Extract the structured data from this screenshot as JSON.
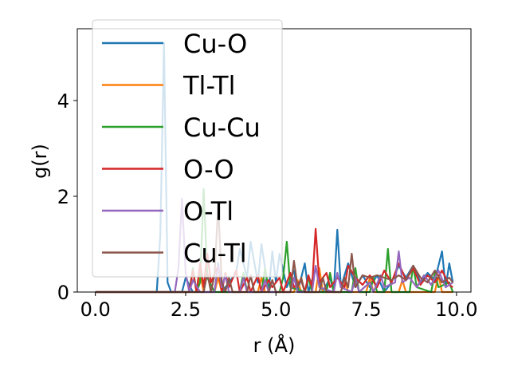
{
  "chart_data": {
    "type": "line",
    "xlabel": "r (Å)",
    "ylabel": "g(r)",
    "xlim": [
      -0.5,
      10.4
    ],
    "ylim": [
      0,
      5.5
    ],
    "xticks": [
      0.0,
      2.5,
      5.0,
      7.5,
      10.0
    ],
    "xtick_labels": [
      "0.0",
      "2.5",
      "5.0",
      "7.5",
      "10.0"
    ],
    "yticks": [
      0,
      2,
      4
    ],
    "ytick_labels": [
      "0",
      "2",
      "4"
    ],
    "legend_position": "upper-left",
    "grid": false,
    "series": [
      {
        "name": "Cu-O",
        "color": "#1f77b4",
        "points": [
          [
            0,
            0
          ],
          [
            1.7,
            0
          ],
          [
            1.8,
            1.2
          ],
          [
            1.9,
            5.2
          ],
          [
            2.0,
            0.2
          ],
          [
            2.1,
            0
          ],
          [
            2.4,
            0
          ],
          [
            2.5,
            0.3
          ],
          [
            2.7,
            0
          ],
          [
            3.3,
            0
          ],
          [
            3.4,
            0.6
          ],
          [
            3.5,
            0
          ],
          [
            3.9,
            0.4
          ],
          [
            4.0,
            0.9
          ],
          [
            4.2,
            0.3
          ],
          [
            4.3,
            1.05
          ],
          [
            4.5,
            0.2
          ],
          [
            4.6,
            1.0
          ],
          [
            4.8,
            0
          ],
          [
            4.9,
            0.85
          ],
          [
            5.0,
            0.2
          ],
          [
            5.1,
            0.8
          ],
          [
            5.3,
            0.1
          ],
          [
            5.5,
            0.45
          ],
          [
            5.6,
            0
          ],
          [
            5.8,
            0.6
          ],
          [
            5.9,
            0
          ],
          [
            6.1,
            0.5
          ],
          [
            6.3,
            0
          ],
          [
            6.5,
            0.3
          ],
          [
            6.6,
            0
          ],
          [
            6.7,
            1.3
          ],
          [
            6.8,
            0.1
          ],
          [
            7.0,
            0.6
          ],
          [
            7.2,
            0.1
          ],
          [
            7.4,
            0.35
          ],
          [
            7.6,
            0.1
          ],
          [
            7.8,
            0.35
          ],
          [
            8.0,
            0
          ],
          [
            8.2,
            0.2
          ],
          [
            8.4,
            0.55
          ],
          [
            8.6,
            0.3
          ],
          [
            8.8,
            0.55
          ],
          [
            9.0,
            0.2
          ],
          [
            9.2,
            0.4
          ],
          [
            9.4,
            0.25
          ],
          [
            9.6,
            0.85
          ],
          [
            9.7,
            0.1
          ],
          [
            9.8,
            0.6
          ],
          [
            9.9,
            0.2
          ]
        ]
      },
      {
        "name": "Tl-Tl",
        "color": "#ff7f0e",
        "points": [
          [
            0,
            0
          ],
          [
            2.8,
            0
          ],
          [
            2.9,
            0.4
          ],
          [
            3.0,
            0
          ],
          [
            3.3,
            0
          ],
          [
            3.4,
            0.3
          ],
          [
            3.5,
            0
          ],
          [
            4.5,
            0
          ],
          [
            4.6,
            0.3
          ],
          [
            4.7,
            0
          ],
          [
            5.5,
            0
          ],
          [
            5.6,
            0.25
          ],
          [
            5.7,
            0
          ],
          [
            6.1,
            0
          ],
          [
            6.2,
            0.5
          ],
          [
            6.3,
            0
          ],
          [
            6.8,
            0
          ],
          [
            6.9,
            0.3
          ],
          [
            7.0,
            0
          ],
          [
            7.5,
            0
          ],
          [
            7.6,
            0.3
          ],
          [
            7.7,
            0
          ],
          [
            8.4,
            0
          ],
          [
            8.5,
            0.25
          ],
          [
            8.6,
            0
          ],
          [
            9.4,
            0
          ],
          [
            9.5,
            0.35
          ],
          [
            9.6,
            0
          ],
          [
            9.9,
            0
          ]
        ]
      },
      {
        "name": "Cu-Cu",
        "color": "#2ca02c",
        "points": [
          [
            0,
            0
          ],
          [
            2.6,
            0
          ],
          [
            2.7,
            0.5
          ],
          [
            2.8,
            0
          ],
          [
            2.9,
            0.2
          ],
          [
            3.0,
            2.15
          ],
          [
            3.1,
            0.3
          ],
          [
            3.3,
            0
          ],
          [
            4.0,
            0
          ],
          [
            4.1,
            0.4
          ],
          [
            4.2,
            0
          ],
          [
            4.6,
            0
          ],
          [
            4.7,
            0.5
          ],
          [
            4.8,
            0
          ],
          [
            5.1,
            0
          ],
          [
            5.2,
            0.3
          ],
          [
            5.3,
            1.05
          ],
          [
            5.4,
            0.1
          ],
          [
            5.8,
            0
          ],
          [
            5.9,
            0.3
          ],
          [
            6.0,
            0
          ],
          [
            6.4,
            0
          ],
          [
            6.5,
            0.4
          ],
          [
            6.6,
            0
          ],
          [
            7.1,
            0
          ],
          [
            7.2,
            0.5
          ],
          [
            7.3,
            0
          ],
          [
            7.6,
            0
          ],
          [
            7.7,
            0.3
          ],
          [
            7.8,
            0
          ],
          [
            8.0,
            0
          ],
          [
            8.1,
            0.9
          ],
          [
            8.2,
            0
          ],
          [
            8.7,
            0
          ],
          [
            8.8,
            0.55
          ],
          [
            8.9,
            0.1
          ],
          [
            9.3,
            0
          ],
          [
            9.4,
            0.4
          ],
          [
            9.5,
            0.1
          ],
          [
            9.8,
            0.2
          ],
          [
            9.9,
            0
          ]
        ]
      },
      {
        "name": "O-O",
        "color": "#d62728",
        "points": [
          [
            0,
            0
          ],
          [
            2.6,
            0
          ],
          [
            2.7,
            0.45
          ],
          [
            2.8,
            0
          ],
          [
            2.9,
            0.6
          ],
          [
            3.0,
            0.1
          ],
          [
            3.1,
            0.8
          ],
          [
            3.2,
            0.2
          ],
          [
            3.4,
            0.55
          ],
          [
            3.5,
            0
          ],
          [
            3.6,
            0.4
          ],
          [
            3.7,
            0.1
          ],
          [
            3.9,
            0.45
          ],
          [
            4.0,
            0
          ],
          [
            4.2,
            0.3
          ],
          [
            4.3,
            0
          ],
          [
            4.5,
            0.35
          ],
          [
            4.6,
            0
          ],
          [
            4.8,
            0.25
          ],
          [
            4.9,
            0.1
          ],
          [
            5.1,
            0.3
          ],
          [
            5.2,
            0
          ],
          [
            5.4,
            0.4
          ],
          [
            5.5,
            0.1
          ],
          [
            5.7,
            0.25
          ],
          [
            5.8,
            0
          ],
          [
            5.9,
            0.35
          ],
          [
            6.0,
            0.1
          ],
          [
            6.1,
            1.32
          ],
          [
            6.2,
            0.2
          ],
          [
            6.4,
            0.4
          ],
          [
            6.5,
            0.1
          ],
          [
            6.7,
            0.3
          ],
          [
            6.9,
            0.1
          ],
          [
            7.0,
            0.55
          ],
          [
            7.2,
            0.3
          ],
          [
            7.4,
            0.15
          ],
          [
            7.6,
            0.35
          ],
          [
            7.8,
            0.1
          ],
          [
            8.0,
            0.45
          ],
          [
            8.2,
            0.2
          ],
          [
            8.4,
            0.6
          ],
          [
            8.6,
            0.25
          ],
          [
            8.8,
            0.5
          ],
          [
            9.0,
            0.15
          ],
          [
            9.2,
            0.35
          ],
          [
            9.4,
            0.2
          ],
          [
            9.6,
            0.45
          ],
          [
            9.8,
            0.15
          ],
          [
            9.9,
            0.1
          ]
        ]
      },
      {
        "name": "O-Tl",
        "color": "#9467bd",
        "points": [
          [
            0,
            0
          ],
          [
            2.2,
            0
          ],
          [
            2.3,
            0.5
          ],
          [
            2.4,
            1.95
          ],
          [
            2.5,
            0.4
          ],
          [
            2.6,
            0
          ],
          [
            2.7,
            0.25
          ],
          [
            2.9,
            0
          ],
          [
            3.3,
            0
          ],
          [
            3.4,
            0.55
          ],
          [
            3.5,
            0.1
          ],
          [
            3.6,
            0.35
          ],
          [
            3.7,
            0
          ],
          [
            4.0,
            0
          ],
          [
            4.1,
            0.3
          ],
          [
            4.2,
            0
          ],
          [
            4.6,
            0
          ],
          [
            4.7,
            0.25
          ],
          [
            4.8,
            0
          ],
          [
            5.4,
            0
          ],
          [
            5.5,
            0.3
          ],
          [
            5.6,
            0
          ],
          [
            6.0,
            0
          ],
          [
            6.1,
            0.55
          ],
          [
            6.2,
            0.1
          ],
          [
            6.6,
            0
          ],
          [
            6.7,
            0.4
          ],
          [
            6.8,
            0.1
          ],
          [
            7.1,
            0
          ],
          [
            7.2,
            0.3
          ],
          [
            7.3,
            0
          ],
          [
            7.6,
            0.2
          ],
          [
            7.7,
            0
          ],
          [
            7.9,
            0.35
          ],
          [
            8.0,
            0.1
          ],
          [
            8.3,
            0.2
          ],
          [
            8.4,
            0.85
          ],
          [
            8.5,
            0.2
          ],
          [
            8.7,
            0.3
          ],
          [
            8.9,
            0.1
          ],
          [
            9.1,
            0.35
          ],
          [
            9.3,
            0.15
          ],
          [
            9.5,
            0.45
          ],
          [
            9.7,
            0.1
          ],
          [
            9.9,
            0.2
          ]
        ]
      },
      {
        "name": "Cu-Tl",
        "color": "#8c564b",
        "points": [
          [
            0,
            0
          ],
          [
            3.0,
            0
          ],
          [
            3.1,
            0.4
          ],
          [
            3.2,
            0
          ],
          [
            3.3,
            0.35
          ],
          [
            3.4,
            1.8
          ],
          [
            3.5,
            0.2
          ],
          [
            3.6,
            0
          ],
          [
            3.7,
            0.3
          ],
          [
            3.8,
            0
          ],
          [
            4.2,
            0
          ],
          [
            4.3,
            0.35
          ],
          [
            4.4,
            0
          ],
          [
            4.8,
            0
          ],
          [
            4.9,
            0.25
          ],
          [
            5.0,
            0
          ],
          [
            5.4,
            0
          ],
          [
            5.5,
            0.65
          ],
          [
            5.6,
            0.1
          ],
          [
            5.7,
            0.3
          ],
          [
            5.8,
            0
          ],
          [
            6.2,
            0
          ],
          [
            6.3,
            0.3
          ],
          [
            6.4,
            0
          ],
          [
            6.8,
            0
          ],
          [
            6.9,
            0.3
          ],
          [
            7.0,
            0.1
          ],
          [
            7.1,
            0.8
          ],
          [
            7.2,
            0.1
          ],
          [
            7.4,
            0.35
          ],
          [
            7.6,
            0.3
          ],
          [
            7.8,
            0.35
          ],
          [
            8.0,
            0.3
          ],
          [
            8.2,
            0.25
          ],
          [
            8.4,
            0.35
          ],
          [
            8.6,
            0.25
          ],
          [
            8.8,
            0.55
          ],
          [
            9.0,
            0.3
          ],
          [
            9.2,
            0.2
          ],
          [
            9.4,
            0.45
          ],
          [
            9.6,
            0.2
          ],
          [
            9.8,
            0.3
          ],
          [
            9.9,
            0.2
          ]
        ]
      }
    ]
  }
}
